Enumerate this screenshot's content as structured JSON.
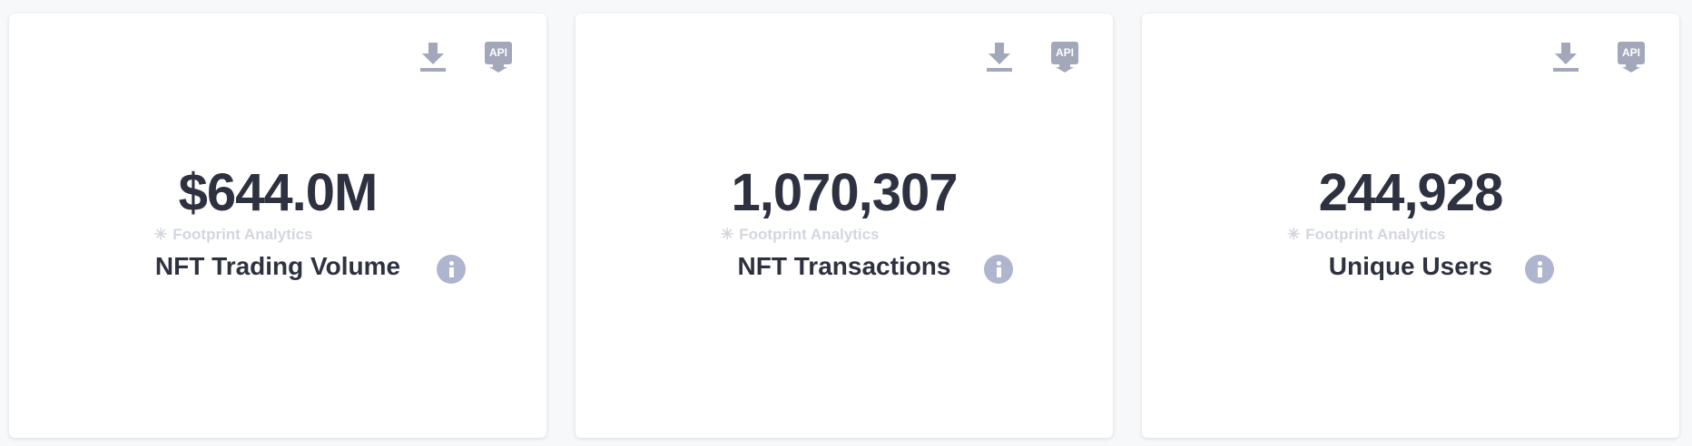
{
  "cards": [
    {
      "value": "$644.0M",
      "label": "NFT Trading Volume",
      "watermark": "Footprint Analytics",
      "api_label": "API"
    },
    {
      "value": "1,070,307",
      "label": "NFT Transactions",
      "watermark": "Footprint Analytics",
      "api_label": "API"
    },
    {
      "value": "244,928",
      "label": "Unique Users",
      "watermark": "Footprint Analytics",
      "api_label": "API"
    }
  ],
  "colors": {
    "icon": "#a2a7ba",
    "info": "#b0b5cf",
    "text": "#2e3140"
  }
}
